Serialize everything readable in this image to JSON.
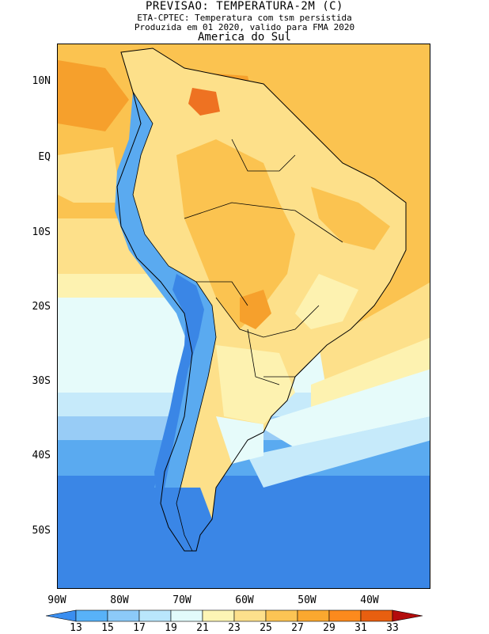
{
  "title": {
    "line1": "PREVISAO: TEMPERATURA-2M (C)",
    "line2": "ETA-CPTEC: Temperatura com tsm persistida",
    "line3": "Produzida em 01 2020, valido para FMA 2020",
    "line4": "America do Sul"
  },
  "axes": {
    "lat_labels": [
      "10N",
      "EQ",
      "10S",
      "20S",
      "30S",
      "40S",
      "50S"
    ],
    "lon_labels": [
      "90W",
      "80W",
      "70W",
      "60W",
      "50W",
      "40W"
    ]
  },
  "colorbar": {
    "ticks": [
      "13",
      "15",
      "17",
      "19",
      "21",
      "23",
      "25",
      "27",
      "29",
      "31",
      "33"
    ],
    "colors": [
      "#3a8ef0",
      "#58b2f8",
      "#8ccaf8",
      "#b9e6fc",
      "#e2fbfb",
      "#fdf5b5",
      "#fde08c",
      "#fcc454",
      "#fba82f",
      "#fc8a1d",
      "#e85f10",
      "#d0240b",
      "#b30c0c"
    ]
  },
  "map_colors": {
    "t13": "#3a86e6",
    "t15": "#5aaaf0",
    "t17": "#98ccf6",
    "t19": "#c6eafa",
    "t21": "#e6fbfa",
    "t23": "#fdf2b0",
    "t25": "#fde08a",
    "t27": "#fbc350",
    "t29": "#f6a02c",
    "t31": "#ee7222",
    "t33": "#d8400f"
  }
}
